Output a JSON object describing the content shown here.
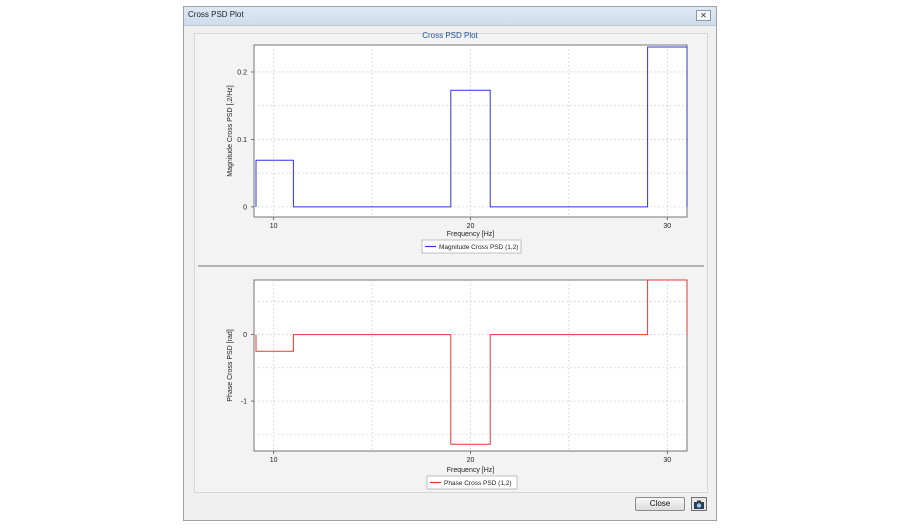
{
  "window": {
    "title": "Cross PSD Plot"
  },
  "plot_title": "Cross PSD Plot",
  "buttons": {
    "close_label": "Close",
    "screenshot_icon": "camera-icon"
  },
  "colors": {
    "magnitude": "#3333dd",
    "phase": "#ee3333",
    "title": "#1f4e9c"
  },
  "chart_data": [
    {
      "type": "line",
      "xlabel": "Frequency [Hz]",
      "ylabel": "Magnitude Cross PSD [.2/Hz]",
      "xlim": [
        9,
        31
      ],
      "ylim": [
        -0.015,
        0.24
      ],
      "xticks": [
        10,
        20,
        30
      ],
      "xtick_labels": [
        "10",
        "20",
        "30"
      ],
      "yticks": [
        0,
        0.1,
        0.2
      ],
      "ytick_labels": [
        "0",
        "0.1",
        "0.2"
      ],
      "grid": true,
      "legend": "bottom-center",
      "series": [
        {
          "name": "Magnitude Cross PSD (1,2)",
          "x": [
            9.1,
            9.1,
            11,
            11,
            19,
            19,
            21,
            21,
            29,
            29,
            31,
            31
          ],
          "y": [
            0,
            0.069,
            0.069,
            0,
            0,
            0.173,
            0.173,
            0,
            0,
            0.237,
            0.237,
            0
          ]
        }
      ]
    },
    {
      "type": "line",
      "xlabel": "Frequency [Hz]",
      "ylabel": "Phase Cross PSD [rad]",
      "xlim": [
        9,
        31
      ],
      "ylim": [
        -1.75,
        0.82
      ],
      "xticks": [
        10,
        20,
        30
      ],
      "xtick_labels": [
        "10",
        "20",
        "30"
      ],
      "yticks": [
        -1,
        0
      ],
      "ytick_labels": [
        "-1",
        "0"
      ],
      "grid": true,
      "legend": "bottom-center",
      "series": [
        {
          "name": "Phase Cross PSD (1,2)",
          "x": [
            9.1,
            9.1,
            11,
            11,
            19,
            19,
            21,
            21,
            29,
            29,
            31,
            31
          ],
          "y": [
            0,
            -0.25,
            -0.25,
            0,
            0,
            -1.65,
            -1.65,
            0,
            0,
            0.82,
            0.82,
            0
          ]
        }
      ]
    }
  ]
}
